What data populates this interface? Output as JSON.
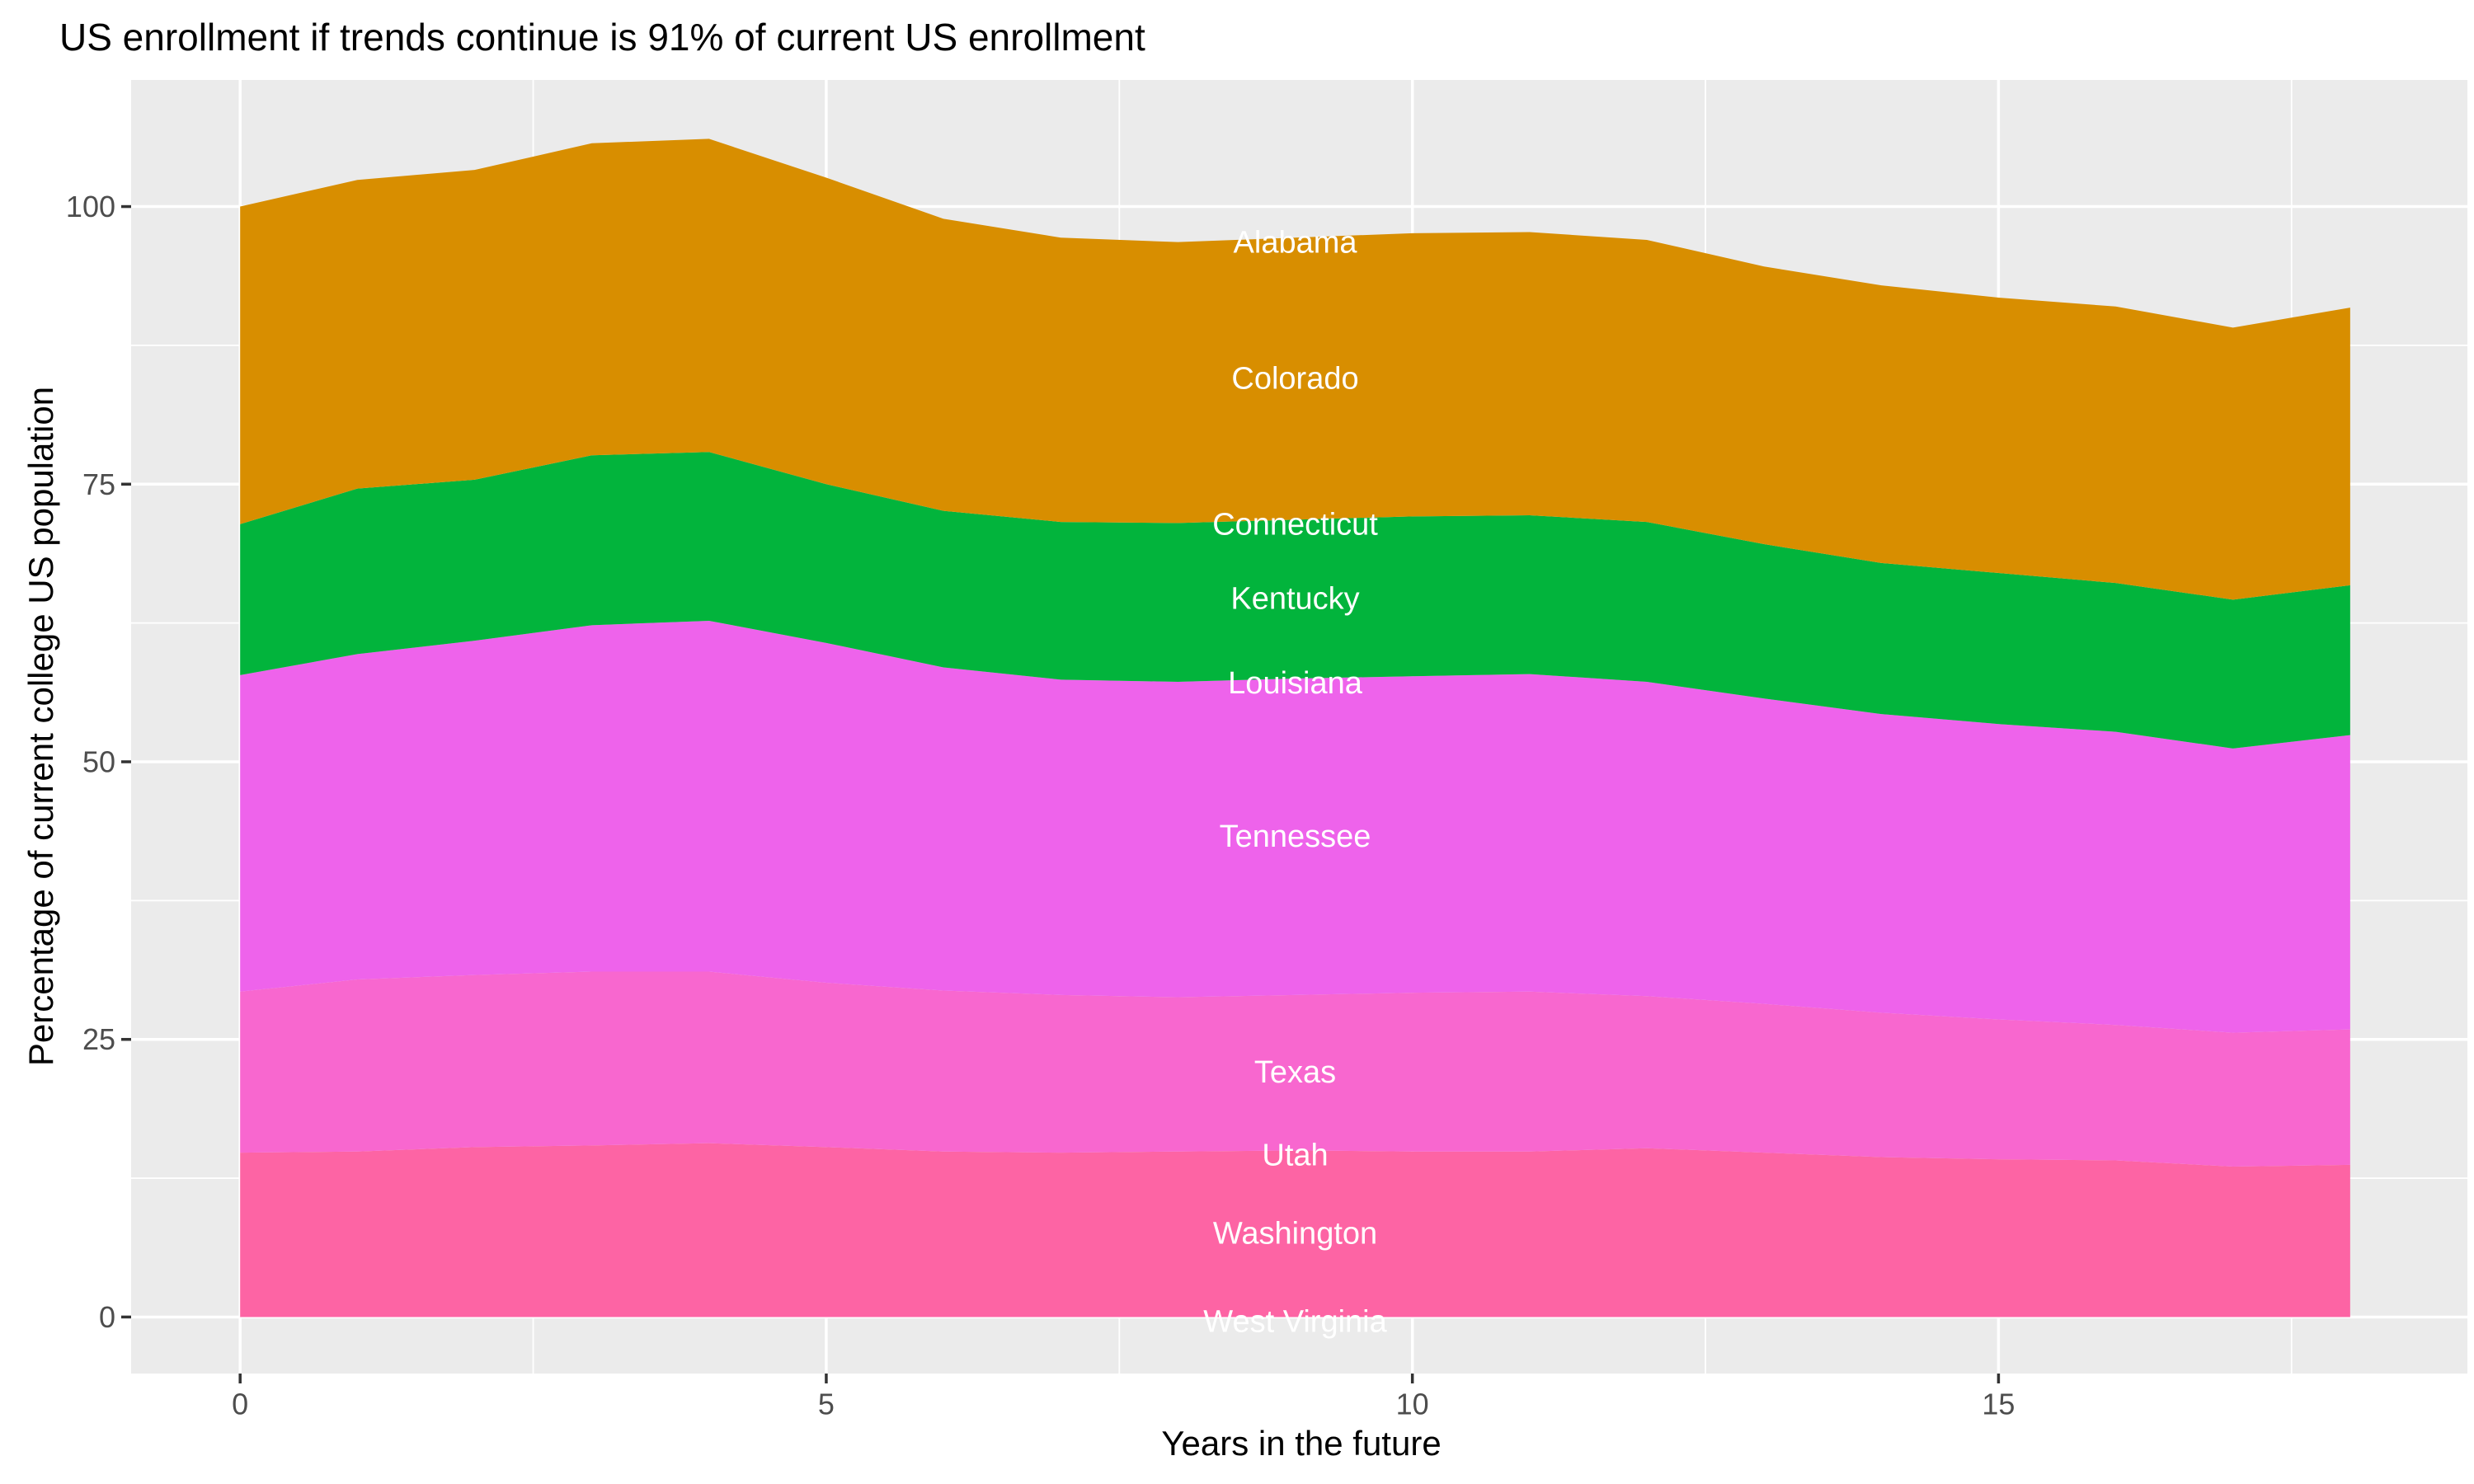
{
  "title": "US enrollment if trends continue is 91% of current US enrollment",
  "chart_data": {
    "type": "area",
    "stacked": true,
    "title": "US enrollment if trends continue is 91% of current US enrollment",
    "xlabel": "Years in the future",
    "ylabel": "Percentage of current college US population",
    "legend": "none",
    "grid": true,
    "label_x": 9,
    "x": [
      0,
      1,
      2,
      3,
      4,
      5,
      6,
      7,
      8,
      9,
      10,
      11,
      12,
      13,
      14,
      15,
      16,
      17,
      18
    ],
    "x_ticks": {
      "values": [
        0,
        5,
        10,
        15
      ],
      "labels": [
        "0",
        "5",
        "10",
        "15"
      ]
    },
    "x_minor_ticks": [
      2.5,
      7.5,
      12.5,
      17.5
    ],
    "y_ticks": {
      "values": [
        0,
        25,
        50,
        75,
        100
      ],
      "labels": [
        "0",
        "25",
        "50",
        "75",
        "100"
      ]
    },
    "y_minor_ticks": [
      12.5,
      37.5,
      62.5,
      87.5
    ],
    "xlim": [
      -0.93,
      19.0
    ],
    "ylim": [
      -5.09,
      111.4
    ],
    "stack_order": "listed bottom to top, labels read top to bottom as Alabama..West Virginia",
    "series": [
      {
        "name": "West Virginia",
        "color": "#FF62BC",
        "values": [
          0,
          0,
          0,
          0,
          0,
          0,
          0,
          0,
          0,
          0,
          0,
          0,
          0,
          0,
          0,
          0,
          0,
          0,
          0
        ]
      },
      {
        "name": "Washington",
        "color": "#FD64A4",
        "values": [
          14.8,
          14.9,
          15.3,
          15.45,
          15.65,
          15.3,
          14.9,
          14.8,
          14.9,
          15.0,
          14.9,
          14.9,
          15.2,
          14.8,
          14.4,
          14.2,
          14.1,
          13.55,
          13.7
        ]
      },
      {
        "name": "Utah",
        "color": "#9590FF",
        "values": [
          0,
          0,
          0,
          0,
          0,
          0,
          0,
          0,
          0,
          0,
          0,
          0,
          0,
          0,
          0,
          0,
          0,
          0,
          0
        ]
      },
      {
        "name": "Texas",
        "color": "#F867CF",
        "values": [
          14.5,
          15.5,
          15.5,
          15.65,
          15.45,
          14.8,
          14.5,
          14.2,
          13.9,
          14.0,
          14.3,
          14.4,
          13.7,
          13.4,
          13.0,
          12.6,
          12.2,
          12.05,
          12.2
        ]
      },
      {
        "name": "Tennessee",
        "color": "#EE63EB",
        "values": [
          28.5,
          29.3,
          30.1,
          31.2,
          31.6,
          30.6,
          29.1,
          28.4,
          28.4,
          28.5,
          28.5,
          28.6,
          28.3,
          27.5,
          26.9,
          26.6,
          26.4,
          25.6,
          26.5
        ]
      },
      {
        "name": "Louisiana",
        "color": "#00BF7D",
        "values": [
          0,
          0,
          0,
          0,
          0,
          0,
          0,
          0,
          0,
          0,
          0,
          0,
          0,
          0,
          0,
          0,
          0,
          0,
          0
        ]
      },
      {
        "name": "Kentucky",
        "color": "#02B43C",
        "values": [
          13.6,
          14.9,
          14.5,
          15.3,
          15.2,
          14.3,
          14.1,
          14.2,
          14.3,
          14.3,
          14.4,
          14.3,
          14.4,
          13.9,
          13.6,
          13.6,
          13.4,
          13.4,
          13.5
        ]
      },
      {
        "name": "Connecticut",
        "color": "#A3A500",
        "values": [
          0,
          0,
          0,
          0,
          0,
          0,
          0,
          0,
          0,
          0,
          0,
          0,
          0,
          0,
          0,
          0,
          0,
          0,
          0
        ]
      },
      {
        "name": "Colorado",
        "color": "#D88E00",
        "values": [
          28.6,
          27.8,
          27.9,
          28.1,
          28.2,
          27.6,
          26.3,
          25.6,
          25.3,
          25.4,
          25.5,
          25.5,
          25.4,
          25.0,
          25.0,
          24.8,
          24.9,
          24.5,
          25.0
        ]
      },
      {
        "name": "Alabama",
        "color": "#F8766D",
        "values": [
          0,
          0,
          0,
          0,
          0,
          0,
          0,
          0,
          0,
          0,
          0,
          0,
          0,
          0,
          0,
          0,
          0,
          0,
          0
        ]
      }
    ],
    "totals_pct": [
      100,
      102.4,
      103.3,
      105.7,
      106.1,
      102.6,
      98.9,
      97.2,
      96.8,
      97.2,
      97.6,
      97.7,
      97.0,
      94.6,
      92.9,
      91.8,
      91.0,
      89.1,
      90.9
    ]
  },
  "style": {
    "panel_bg": "#EBEBEB",
    "plot_bg": "#FFFFFF",
    "grid_color": "#FFFFFF",
    "tick_label_color": "#4D4D4D",
    "tick_mark_color": "#333333",
    "area_label_color": "#FFFFFF",
    "title_color": "#000000"
  }
}
